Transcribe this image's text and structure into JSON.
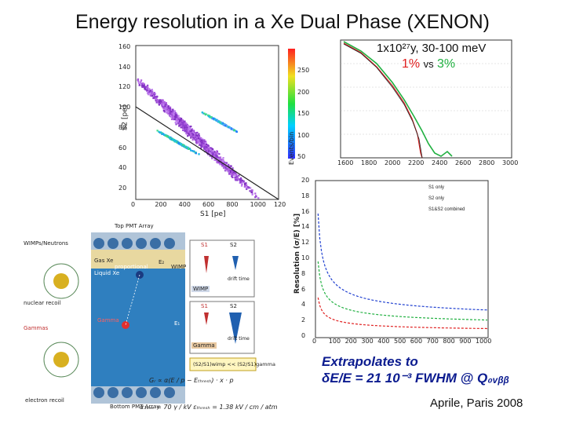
{
  "title": "Energy resolution in a Xe Dual Phase (XENON)",
  "scatter_panel": {
    "ylabel": "S2 [pe]",
    "xlabel": "S1 [pe]",
    "x_ticks": [
      "0",
      "200",
      "400",
      "600",
      "800",
      "1000",
      "120"
    ],
    "y_ticks": [
      "160",
      "140",
      "120",
      "100",
      "80",
      "60",
      "40",
      "20"
    ],
    "z_ticks": [
      "250",
      "200",
      "150",
      "100",
      "50"
    ],
    "zlabel": "Events/bin"
  },
  "spectrum_panel": {
    "exposure": "1x10²⁷y, 30-100 meV",
    "cmp_a": "1%",
    "cmp_vs": "vs",
    "cmp_b": "3%",
    "x_ticks": [
      "1600",
      "1800",
      "2000",
      "2200",
      "2400",
      "2600",
      "2800",
      "3000"
    ]
  },
  "resolution_panel": {
    "ylabel": "Resolution (σ/E) [%]",
    "y_ticks": [
      "20",
      "18",
      "16",
      "14",
      "12",
      "10",
      "8",
      "6",
      "4",
      "2",
      "0"
    ],
    "x_ticks": [
      "0",
      "100",
      "200",
      "300",
      "400",
      "500",
      "600",
      "700",
      "800",
      "900",
      "1000"
    ],
    "legend": [
      "S1 only",
      "S2 only",
      "S1&S2 combined"
    ],
    "series_colors": [
      "#2040d0",
      "#20b040",
      "#e02020"
    ]
  },
  "detector_panel": {
    "top_array": "Top PMT Array",
    "bottom_array": "Bottom PMT Array",
    "wimps": "WIMPs/Neutrons",
    "gas": "Gas Xe",
    "liquid": "Liquid Xe",
    "proportional": "proportional",
    "wimp": "WIMP",
    "wimp_box": "WIMP",
    "gamma": "Gamma",
    "gamma_box": "Gamma",
    "nuclear": "nuclear recoil",
    "gammas": "Gammas",
    "electron": "electron recoil",
    "s1_a": "S1",
    "s2_a": "S2",
    "s1_b": "S1",
    "s2_b": "S2",
    "drift_a": "drift time",
    "drift_b": "drift time",
    "e1": "E₁",
    "e2": "E₂",
    "ratio": "(S2/S1)wimp << (S2/S1)gamma",
    "formula1": "Gᵣ ∝ α(E / p − Eₜₕᵣₑₛₕ) · x · p",
    "formula2": "α₁₃ₓₑ = 70 γ / kV    εₜₕᵣₑₛₕ = 1.38 kV / cm / atm"
  },
  "extrapolates_line1": "Extrapolates to",
  "extrapolates_line2": "δE/E = 21 10⁻³ FWHM @ Q₀ᵥᵦᵦ",
  "credit": "Aprile, Paris 2008"
}
